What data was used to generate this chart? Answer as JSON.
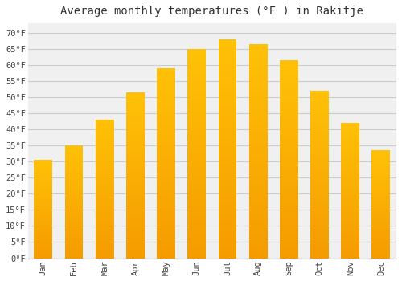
{
  "title": "Average monthly temperatures (°F ) in Rakitje",
  "months": [
    "Jan",
    "Feb",
    "Mar",
    "Apr",
    "May",
    "Jun",
    "Jul",
    "Aug",
    "Sep",
    "Oct",
    "Nov",
    "Dec"
  ],
  "values": [
    30.5,
    35.0,
    43.0,
    51.5,
    59.0,
    65.0,
    68.0,
    66.5,
    61.5,
    52.0,
    42.0,
    33.5
  ],
  "bar_color_top": "#FFC107",
  "bar_color_bottom": "#F59B00",
  "background_color": "#ffffff",
  "grid_color": "#cccccc",
  "plot_bg_color": "#f0f0f0",
  "yticks": [
    0,
    5,
    10,
    15,
    20,
    25,
    30,
    35,
    40,
    45,
    50,
    55,
    60,
    65,
    70
  ],
  "ylim": [
    0,
    73
  ],
  "title_fontsize": 10,
  "tick_fontsize": 7.5,
  "font_family": "monospace"
}
